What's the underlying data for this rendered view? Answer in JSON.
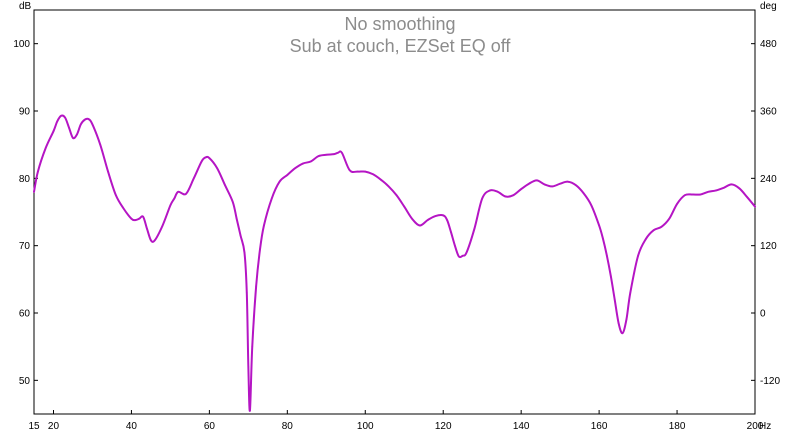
{
  "chart_data": {
    "type": "line",
    "title": "No smoothing",
    "subtitle": "Sub at couch, EZSet EQ off",
    "left_unit": "dB",
    "right_unit": "deg",
    "x_unit": "Hz",
    "xlim": [
      15,
      200
    ],
    "ylim": [
      45,
      105
    ],
    "y2lim": [
      -180,
      540
    ],
    "x_ticks": [
      15,
      20,
      40,
      60,
      80,
      100,
      120,
      140,
      160,
      180,
      200
    ],
    "y_ticks": [
      50,
      60,
      70,
      80,
      90,
      100
    ],
    "y2_ticks": [
      -120,
      0,
      120,
      240,
      360,
      480
    ],
    "grid": false,
    "series": [
      {
        "color": "#b515c4",
        "x": [
          15,
          16,
          18,
          20,
          21,
          22,
          23,
          24,
          25,
          26,
          27,
          28,
          29,
          30,
          32,
          34,
          36,
          38,
          40,
          41,
          42,
          43,
          44,
          45,
          46,
          48,
          50,
          51,
          52,
          54,
          56,
          58,
          59,
          60,
          62,
          64,
          66,
          67,
          68,
          69,
          69.6,
          70,
          70.4,
          71,
          72,
          73,
          74,
          76,
          78,
          80,
          82,
          84,
          86,
          88,
          90,
          92,
          93,
          94,
          96,
          98,
          100,
          102,
          104,
          106,
          108,
          110,
          112,
          114,
          116,
          118,
          120,
          121,
          122,
          123,
          124,
          125,
          126,
          128,
          130,
          132,
          134,
          136,
          138,
          140,
          142,
          144,
          146,
          148,
          150,
          152,
          154,
          156,
          158,
          160,
          161,
          162,
          163,
          164,
          165,
          166,
          167,
          168,
          170,
          172,
          174,
          176,
          178,
          180,
          182,
          184,
          186,
          188,
          190,
          192,
          194,
          196,
          198,
          200
        ],
        "y": [
          78,
          81,
          84.5,
          87,
          88.5,
          89.3,
          89,
          87.5,
          86,
          86.5,
          88,
          88.7,
          88.8,
          88,
          85,
          81,
          77.5,
          75.5,
          74,
          73.8,
          74,
          74.3,
          72.5,
          70.8,
          70.8,
          73,
          76,
          77,
          78,
          77.7,
          80,
          82.5,
          83.1,
          83,
          81.5,
          79,
          76.5,
          74,
          71.5,
          69,
          63,
          52,
          45.5,
          55,
          64,
          69.5,
          73,
          77,
          79.5,
          80.5,
          81.5,
          82.2,
          82.5,
          83.3,
          83.5,
          83.6,
          83.8,
          83.8,
          81.2,
          81,
          81,
          80.6,
          79.8,
          78.8,
          77.5,
          75.8,
          74,
          73,
          73.8,
          74.4,
          74.5,
          73.8,
          72,
          70,
          68.4,
          68.5,
          69,
          72.5,
          77,
          78.2,
          78,
          77.3,
          77.5,
          78.4,
          79.2,
          79.7,
          79.1,
          78.8,
          79.2,
          79.5,
          79,
          77.8,
          76,
          73,
          71,
          68.5,
          65.5,
          62,
          58.5,
          57,
          59,
          63,
          68.5,
          71,
          72.3,
          72.8,
          74,
          76.2,
          77.5,
          77.6,
          77.6,
          78,
          78.2,
          78.6,
          79.1,
          78.5,
          77.2,
          75.8
        ]
      }
    ]
  }
}
